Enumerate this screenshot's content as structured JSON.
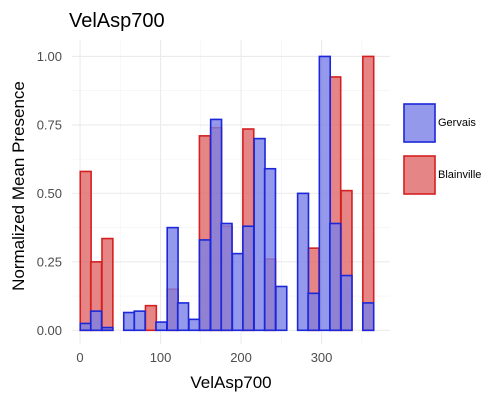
{
  "chart_data": {
    "type": "bar",
    "title": "VelAsp700",
    "xlabel": "VelAsp700",
    "ylabel": "Normalized Mean Presence",
    "xlim": [
      -10,
      385
    ],
    "ylim": [
      -0.05,
      1.06
    ],
    "x_ticks": [
      0,
      100,
      200,
      300
    ],
    "x_tick_labels": [
      "0",
      "100",
      "200",
      "300"
    ],
    "y_ticks": [
      0,
      0.25,
      0.5,
      0.75,
      1.0
    ],
    "y_tick_labels": [
      "0.00",
      "0.25",
      "0.50",
      "0.75",
      "1.00"
    ],
    "bin_width": 13.5,
    "grid": true,
    "legend_position": "right",
    "series": [
      {
        "name": "Blainville",
        "fill": "#e06666",
        "stroke": "#d42020",
        "x": [
          7,
          20,
          34,
          88,
          115,
          155,
          169,
          182,
          209,
          236,
          290,
          317,
          331,
          358
        ],
        "values": [
          0.58,
          0.25,
          0.335,
          0.09,
          0.15,
          0.71,
          0.74,
          0.38,
          0.735,
          0.26,
          0.3,
          0.925,
          0.51,
          1.0
        ]
      },
      {
        "name": "Gervais",
        "fill": "#7b7fe6",
        "stroke": "#1b27d8",
        "x": [
          7,
          20,
          34,
          61,
          74,
          101,
          115,
          128,
          142,
          155,
          169,
          182,
          196,
          209,
          223,
          236,
          250,
          277,
          290,
          304,
          317,
          331,
          358
        ],
        "values": [
          0.025,
          0.07,
          0.01,
          0.065,
          0.07,
          0.03,
          0.375,
          0.1,
          0.04,
          0.33,
          0.77,
          0.39,
          0.28,
          0.38,
          0.7,
          0.59,
          0.16,
          0.5,
          0.135,
          1.0,
          0.39,
          0.2,
          0.1
        ]
      }
    ]
  }
}
